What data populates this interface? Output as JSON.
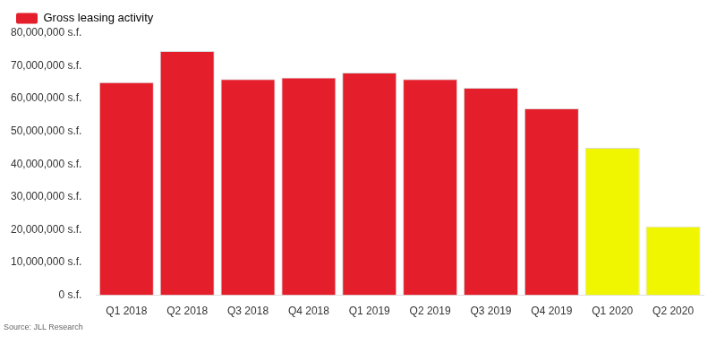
{
  "chart_data": {
    "type": "bar",
    "categories": [
      "Q1 2018",
      "Q2 2018",
      "Q3 2018",
      "Q4 2018",
      "Q1 2019",
      "Q2 2019",
      "Q3 2019",
      "Q4 2019",
      "Q1 2020",
      "Q2 2020"
    ],
    "series": [
      {
        "name": "Gross leasing activity",
        "color": "#e41e2b",
        "colors": [
          "#e41e2b",
          "#e41e2b",
          "#e41e2b",
          "#e41e2b",
          "#e41e2b",
          "#e41e2b",
          "#e41e2b",
          "#e41e2b",
          "#f0f500",
          "#f0f500"
        ],
        "values": [
          65000000,
          74500000,
          66000000,
          66500000,
          68000000,
          66000000,
          63300000,
          57000000,
          45000000,
          21000000
        ]
      }
    ],
    "ylim": [
      0,
      80000000
    ],
    "yticks": [
      {
        "value": 0,
        "label": "0 s.f."
      },
      {
        "value": 10000000,
        "label": "10,000,000 s.f."
      },
      {
        "value": 20000000,
        "label": "20,000,000 s.f."
      },
      {
        "value": 30000000,
        "label": "30,000,000 s.f."
      },
      {
        "value": 40000000,
        "label": "40,000,000 s.f."
      },
      {
        "value": 50000000,
        "label": "50,000,000 s.f."
      },
      {
        "value": 60000000,
        "label": "60,000,000 s.f."
      },
      {
        "value": 70000000,
        "label": "70,000,000 s.f."
      },
      {
        "value": 80000000,
        "label": "80,000,000 s.f."
      }
    ],
    "grid": false,
    "legend": "top-left",
    "annotation": "Source: JLL Research"
  }
}
